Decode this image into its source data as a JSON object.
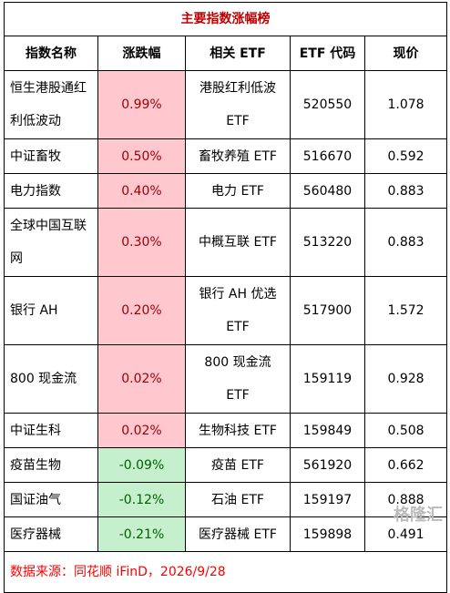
{
  "table": {
    "title": "主要指数涨幅榜",
    "header": [
      "指数名称",
      "涨跌幅",
      "相关 ETF",
      "ETF 代码",
      "现价"
    ],
    "rows": [
      [
        "恒生港股通红利低波动",
        "0.99%",
        "港股红利低波ETF",
        "520550",
        "1.078"
      ],
      [
        "中证畜牧",
        "0.50%",
        "畜牧养殖 ETF",
        "516670",
        "0.592"
      ],
      [
        "电力指数",
        "0.40%",
        "电力 ETF",
        "560480",
        "0.883"
      ],
      [
        "全球中国互联网",
        "0.30%",
        "中概互联 ETF",
        "513220",
        "0.883"
      ],
      [
        "银行 AH",
        "0.20%",
        "银行 AH 优选 ETF",
        "517900",
        "1.572"
      ],
      [
        "800 现金流",
        "0.02%",
        "800 现金流 ETF",
        "159119",
        "0.928"
      ],
      [
        "中证生科",
        "0.02%",
        "生物科技 ETF",
        "159849",
        "0.508"
      ],
      [
        "疫苗生物",
        "-0.09%",
        "疫苗 ETF",
        "561920",
        "0.662"
      ],
      [
        "国证油气",
        "-0.12%",
        "石油 ETF",
        "159197",
        "0.888"
      ],
      [
        "医疗器械",
        "-0.21%",
        "医疗器械 ETF",
        "159898",
        "0.491"
      ]
    ],
    "footer": "数据来源：同花顺 iFinD，2026/9/28",
    "watermark": "格隆汇"
  }
}
